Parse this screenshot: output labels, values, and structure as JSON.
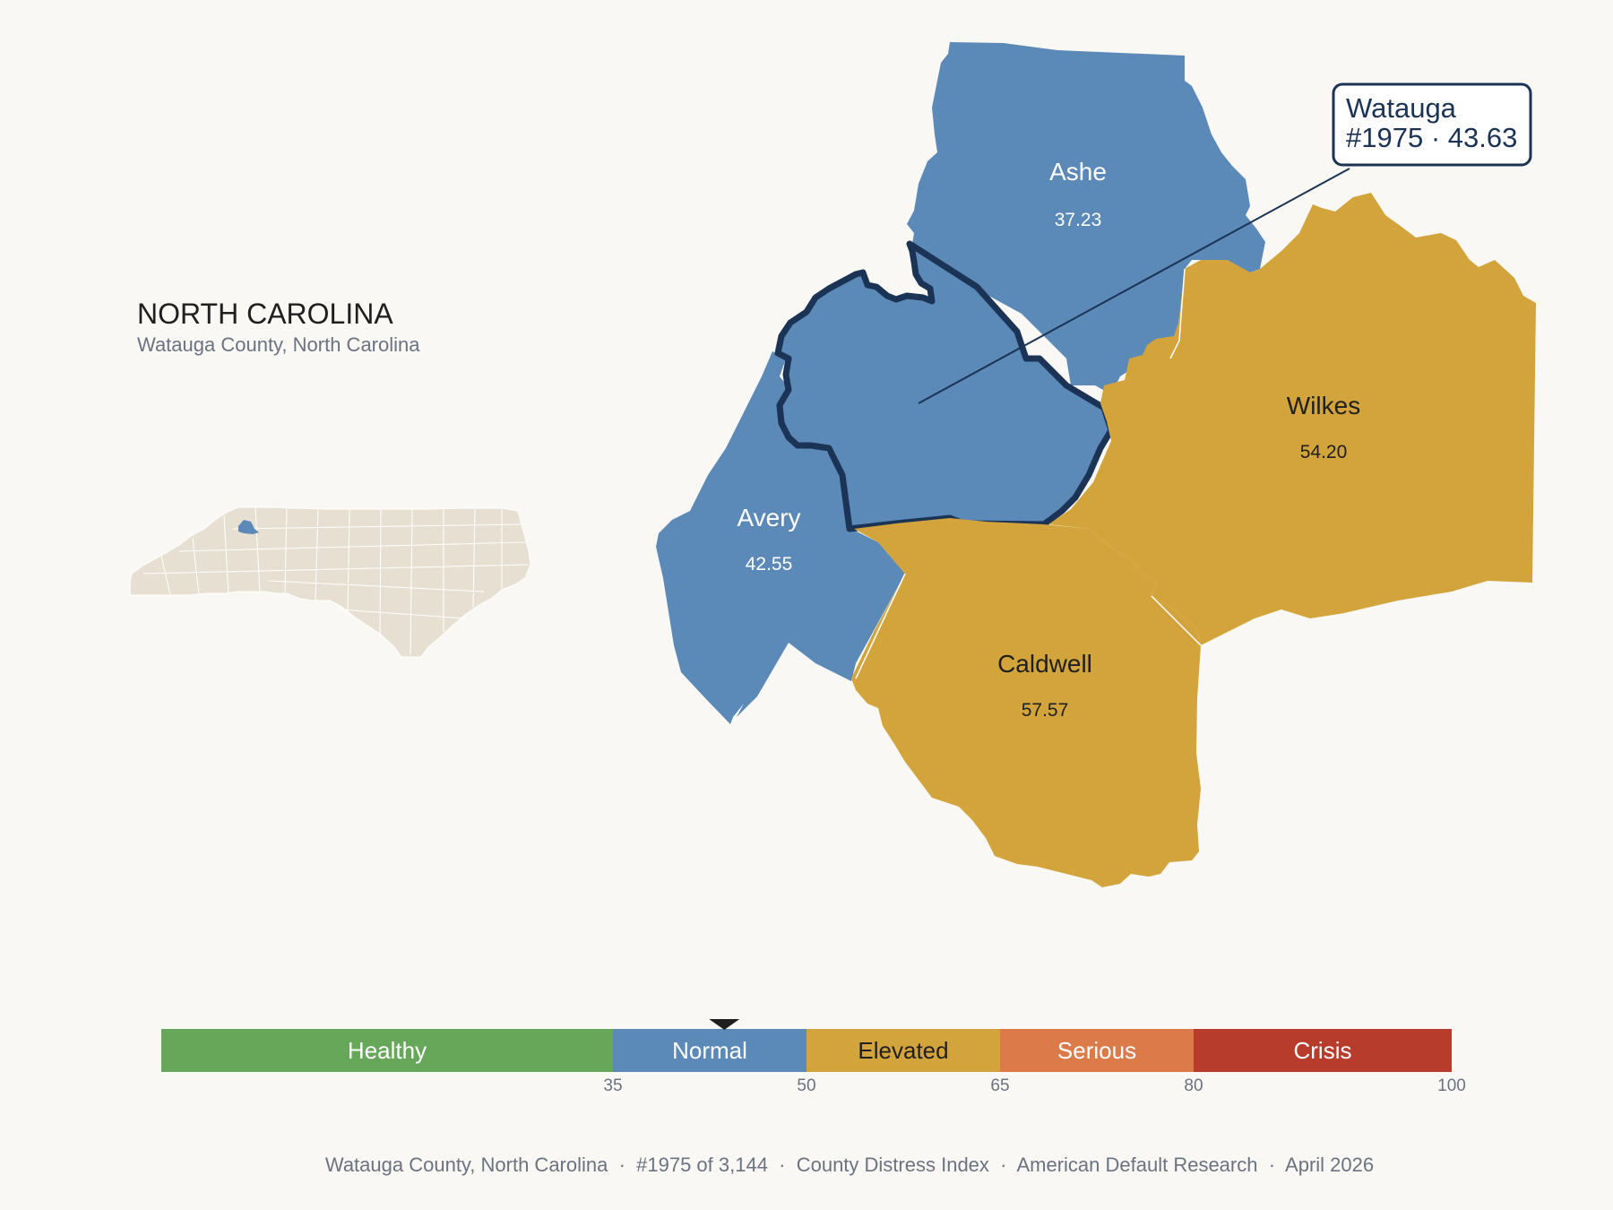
{
  "state": {
    "title": "NORTH CAROLINA",
    "subtitle": "Watauga County, North Carolina"
  },
  "colors": {
    "background": "#f9f8f5",
    "healthy": "#67a75a",
    "normal": "#5b89b8",
    "elevated": "#d3a43b",
    "serious": "#dc7a4a",
    "crisis": "#b83c2c",
    "outline": "#1b3354",
    "inset_land": "#e7e0d2"
  },
  "counties": [
    {
      "name": "Ashe",
      "value": "37.23",
      "tier": "normal"
    },
    {
      "name": "Avery",
      "value": "42.55",
      "tier": "normal"
    },
    {
      "name": "Wilkes",
      "value": "54.20",
      "tier": "elevated"
    },
    {
      "name": "Caldwell",
      "value": "57.57",
      "tier": "elevated"
    },
    {
      "name": "Watauga",
      "value": "43.63",
      "tier": "normal",
      "highlighted": true
    }
  ],
  "callout": {
    "line1": "Watauga",
    "line2": "#1975 · 43.63"
  },
  "legend": {
    "min": 0,
    "max": 100,
    "marker_value": 43.63,
    "segments": [
      {
        "label": "Healthy",
        "from": 0,
        "to": 35,
        "color": "#67a75a"
      },
      {
        "label": "Normal",
        "from": 35,
        "to": 50,
        "color": "#5b89b8"
      },
      {
        "label": "Elevated",
        "from": 50,
        "to": 65,
        "color": "#d3a43b"
      },
      {
        "label": "Serious",
        "from": 65,
        "to": 80,
        "color": "#dc7a4a"
      },
      {
        "label": "Crisis",
        "from": 80,
        "to": 100,
        "color": "#b83c2c"
      }
    ],
    "ticks": [
      "35",
      "50",
      "65",
      "80",
      "100"
    ]
  },
  "footer": {
    "text": "Watauga County, North Carolina  ·  #1975 of 3,144  ·  County Distress Index  ·  American Default Research  ·  April 2026"
  }
}
